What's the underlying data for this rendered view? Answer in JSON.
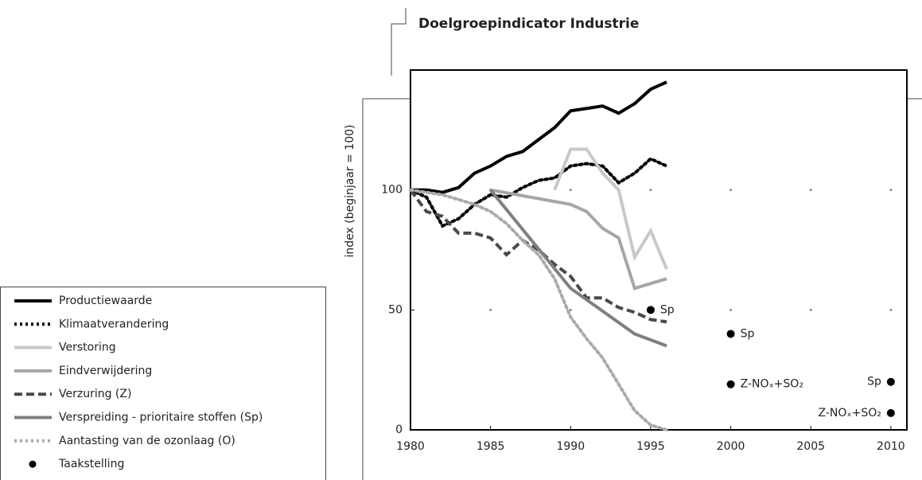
{
  "chart_data": {
    "type": "line",
    "title": "Doelgroepindicator Industrie",
    "y_label": "index (beginjaar = 100)",
    "xlim": [
      1980,
      2011
    ],
    "xticks": [
      1980,
      1985,
      1990,
      1995,
      2000,
      2005,
      2010
    ],
    "ylim": [
      0,
      150
    ],
    "yticks": [
      0,
      50,
      100
    ],
    "grid": true,
    "series": [
      {
        "name": "Productiewaarde",
        "color": "#000000",
        "style": "solid",
        "x": [
          1980,
          1981,
          1982,
          1983,
          1984,
          1985,
          1986,
          1987,
          1988,
          1989,
          1990,
          1991,
          1992,
          1993,
          1994,
          1995,
          1996
        ],
        "values": [
          100,
          100,
          99,
          101,
          107,
          110,
          114,
          116,
          121,
          126,
          133,
          134,
          135,
          132,
          136,
          142,
          145
        ]
      },
      {
        "name": "Klimaatverandering",
        "color": "#000000",
        "style": "dotted",
        "x": [
          1980,
          1981,
          1982,
          1983,
          1984,
          1985,
          1986,
          1987,
          1988,
          1989,
          1990,
          1991,
          1992,
          1993,
          1994,
          1995,
          1996
        ],
        "values": [
          100,
          97,
          85,
          88,
          94,
          98,
          97,
          101,
          104,
          105,
          110,
          111,
          110,
          103,
          107,
          113,
          110
        ]
      },
      {
        "name": "Verstoring",
        "color": "#c8c8c8",
        "style": "solid",
        "x": [
          1989,
          1990,
          1991,
          1992,
          1993,
          1994,
          1995,
          1996
        ],
        "values": [
          100,
          117,
          117,
          107,
          100,
          72,
          83,
          67
        ]
      },
      {
        "name": "Eindverwijdering",
        "color": "#a6a6a6",
        "style": "solid",
        "x": [
          1985,
          1990,
          1991,
          1992,
          1993,
          1994,
          1995,
          1996
        ],
        "values": [
          100,
          94,
          91,
          84,
          80,
          59,
          61,
          63
        ]
      },
      {
        "name": "Verzuring (Z)",
        "color": "#4a4a4a",
        "style": "dashed",
        "x": [
          1980,
          1981,
          1982,
          1983,
          1984,
          1985,
          1986,
          1987,
          1988,
          1989,
          1990,
          1991,
          1992,
          1993,
          1994,
          1995,
          1996
        ],
        "values": [
          100,
          91,
          89,
          82,
          82,
          80,
          73,
          79,
          75,
          69,
          64,
          55,
          55,
          51,
          49,
          46,
          45
        ]
      },
      {
        "name": "Verspreiding - prioritaire stoffen (Sp)",
        "color": "#808080",
        "style": "solid",
        "x": [
          1985,
          1990,
          1994,
          1996
        ],
        "values": [
          100,
          59,
          40,
          35
        ]
      },
      {
        "name": "Aantasting van de ozonlaag (O)",
        "color": "#aaaaaa",
        "style": "dotted",
        "x": [
          1980,
          1982,
          1984,
          1985,
          1986,
          1987,
          1988,
          1989,
          1990,
          1991,
          1992,
          1993,
          1994,
          1995,
          1996
        ],
        "values": [
          100,
          98,
          94,
          91,
          86,
          79,
          73,
          63,
          47,
          38,
          30,
          19,
          8,
          2,
          0
        ]
      }
    ],
    "points": {
      "name": "Taakstelling",
      "color": "#000000",
      "x": [
        1995,
        2000,
        2000,
        2010,
        2010
      ],
      "values": [
        50,
        40,
        19,
        20,
        7
      ],
      "labels": [
        "Sp",
        "Sp",
        "Z-NOₓ+SO₂",
        "Sp",
        "Z-NOₓ+SO₂"
      ]
    }
  }
}
